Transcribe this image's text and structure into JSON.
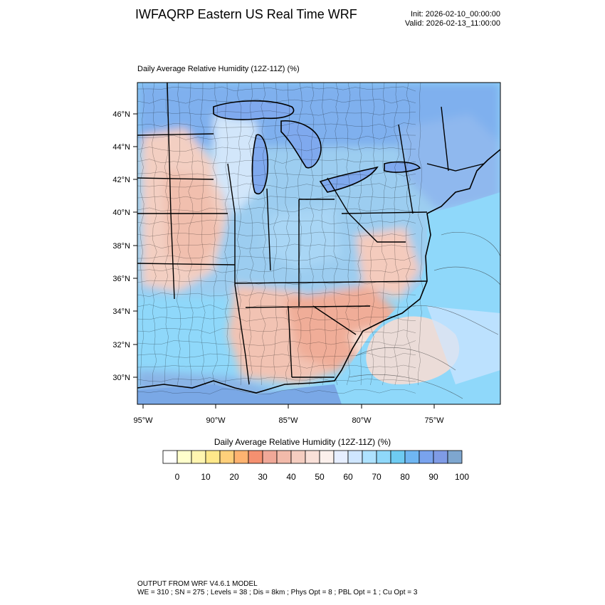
{
  "header": {
    "title": "IWFAQRP Eastern US Real Time WRF",
    "init": "Init: 2026-02-10_00:00:00",
    "valid": "Valid: 2026-02-13_11:00:00"
  },
  "map": {
    "subtitle": "Daily Average Relative Humidity (12Z-11Z)   (%)",
    "lat_labels": [
      "46°N",
      "44°N",
      "42°N",
      "40°N",
      "38°N",
      "36°N",
      "34°N",
      "32°N",
      "30°N"
    ],
    "lon_labels": [
      "95°W",
      "90°W",
      "85°W",
      "80°W",
      "75°W"
    ]
  },
  "colorbar": {
    "title": "Daily Average Relative Humidity (12Z-11Z)  (%)",
    "tick_labels": [
      "0",
      "10",
      "20",
      "30",
      "40",
      "50",
      "60",
      "70",
      "80",
      "90",
      "100"
    ],
    "colors": [
      "#ffffff",
      "#ffffcc",
      "#fff5b0",
      "#ffe88a",
      "#ffcf7a",
      "#ffb370",
      "#f59070",
      "#f0a898",
      "#f2baaa",
      "#f5cdc0",
      "#f9e0d8",
      "#fbf0ec",
      "#e6eeff",
      "#cfe6ff",
      "#aee2ff",
      "#8fd8fa",
      "#6ecbf2",
      "#6fb6f2",
      "#79a3ee",
      "#7f9be6",
      "#7ea6cf"
    ]
  },
  "footer": {
    "line1": "OUTPUT FROM WRF V4.6.1 MODEL",
    "line2": "WE = 310 ; SN = 275 ; Levels = 38 ; Dis = 8km ; Phys Opt = 8 ; PBL Opt = 1 ; Cu Opt = 3"
  }
}
